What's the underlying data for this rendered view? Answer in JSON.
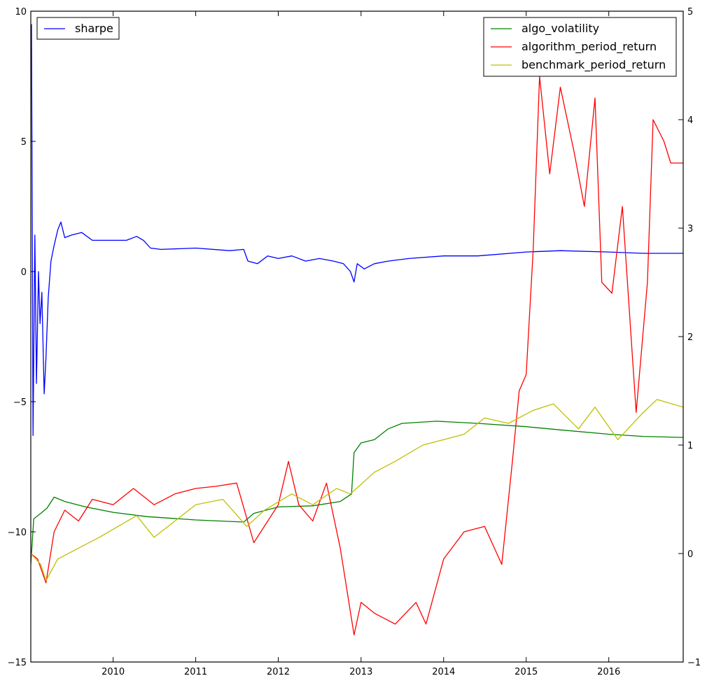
{
  "chart_data": {
    "type": "line",
    "title": "",
    "xlabel": "",
    "ylabel": "",
    "x_axis": {
      "type": "date",
      "range": [
        "2009-01-02",
        "2016-11-25"
      ],
      "ticks": [
        "2010",
        "2011",
        "2012",
        "2013",
        "2014",
        "2015",
        "2016"
      ]
    },
    "y_left": {
      "range": [
        -15,
        10
      ],
      "ticks": [
        "10",
        "5",
        "0",
        "−5",
        "−10",
        "−15"
      ]
    },
    "y_right": {
      "range": [
        -1,
        5
      ],
      "ticks": [
        "5",
        "4",
        "3",
        "2",
        "1",
        "0",
        "−1"
      ]
    },
    "grid": false,
    "legends": [
      {
        "placement": "top-left",
        "entries": [
          "sharpe"
        ]
      },
      {
        "placement": "top-right",
        "entries": [
          "algo_volatility",
          "algorithm_period_return",
          "benchmark_period_return"
        ]
      }
    ],
    "series": [
      {
        "name": "sharpe",
        "axis": "left",
        "color": "#0000ff",
        "points": [
          [
            "2009-01-05",
            9.5
          ],
          [
            "2009-01-12",
            -6.3
          ],
          [
            "2009-01-20",
            1.4
          ],
          [
            "2009-01-27",
            -4.3
          ],
          [
            "2009-02-05",
            0.0
          ],
          [
            "2009-02-12",
            -2.0
          ],
          [
            "2009-02-20",
            -0.8
          ],
          [
            "2009-03-02",
            -4.7
          ],
          [
            "2009-03-10",
            -3.3
          ],
          [
            "2009-03-20",
            -1.0
          ],
          [
            "2009-04-01",
            0.4
          ],
          [
            "2009-04-15",
            1.0
          ],
          [
            "2009-05-01",
            1.6
          ],
          [
            "2009-05-15",
            1.9
          ],
          [
            "2009-06-01",
            1.3
          ],
          [
            "2009-07-01",
            1.4
          ],
          [
            "2009-08-15",
            1.5
          ],
          [
            "2009-10-01",
            1.2
          ],
          [
            "2010-01-01",
            1.2
          ],
          [
            "2010-03-01",
            1.2
          ],
          [
            "2010-04-15",
            1.35
          ],
          [
            "2010-05-15",
            1.2
          ],
          [
            "2010-06-15",
            0.9
          ],
          [
            "2010-08-01",
            0.85
          ],
          [
            "2011-01-01",
            0.9
          ],
          [
            "2011-06-01",
            0.8
          ],
          [
            "2011-08-01",
            0.85
          ],
          [
            "2011-08-20",
            0.4
          ],
          [
            "2011-10-01",
            0.3
          ],
          [
            "2011-11-15",
            0.6
          ],
          [
            "2012-01-01",
            0.5
          ],
          [
            "2012-03-01",
            0.6
          ],
          [
            "2012-05-01",
            0.4
          ],
          [
            "2012-07-01",
            0.5
          ],
          [
            "2012-09-01",
            0.4
          ],
          [
            "2012-10-15",
            0.3
          ],
          [
            "2012-11-15",
            0.0
          ],
          [
            "2012-12-01",
            -0.4
          ],
          [
            "2012-12-15",
            0.3
          ],
          [
            "2013-01-15",
            0.1
          ],
          [
            "2013-03-01",
            0.3
          ],
          [
            "2013-05-01",
            0.4
          ],
          [
            "2013-08-01",
            0.5
          ],
          [
            "2014-01-01",
            0.6
          ],
          [
            "2014-06-01",
            0.6
          ],
          [
            "2015-01-01",
            0.75
          ],
          [
            "2015-06-01",
            0.8
          ],
          [
            "2016-01-01",
            0.75
          ],
          [
            "2016-06-01",
            0.7
          ],
          [
            "2016-11-25",
            0.7
          ]
        ]
      },
      {
        "name": "algo_volatility",
        "axis": "right",
        "color": "#008000",
        "points": [
          [
            "2009-01-02",
            -0.1
          ],
          [
            "2009-01-15",
            0.32
          ],
          [
            "2009-02-15",
            0.37
          ],
          [
            "2009-03-15",
            0.42
          ],
          [
            "2009-04-15",
            0.52
          ],
          [
            "2009-06-01",
            0.48
          ],
          [
            "2009-09-01",
            0.43
          ],
          [
            "2010-01-01",
            0.38
          ],
          [
            "2010-06-01",
            0.34
          ],
          [
            "2011-01-01",
            0.31
          ],
          [
            "2011-08-01",
            0.29
          ],
          [
            "2011-09-15",
            0.37
          ],
          [
            "2012-01-01",
            0.43
          ],
          [
            "2012-06-01",
            0.44
          ],
          [
            "2012-10-01",
            0.48
          ],
          [
            "2012-11-20",
            0.55
          ],
          [
            "2012-12-01",
            0.93
          ],
          [
            "2013-01-01",
            1.02
          ],
          [
            "2013-03-01",
            1.05
          ],
          [
            "2013-05-01",
            1.15
          ],
          [
            "2013-07-01",
            1.2
          ],
          [
            "2013-12-01",
            1.22
          ],
          [
            "2014-06-01",
            1.2
          ],
          [
            "2015-01-01",
            1.17
          ],
          [
            "2015-06-01",
            1.14
          ],
          [
            "2016-01-01",
            1.1
          ],
          [
            "2016-06-01",
            1.08
          ],
          [
            "2016-11-25",
            1.07
          ]
        ]
      },
      {
        "name": "algorithm_period_return",
        "axis": "right",
        "color": "#ff0000",
        "points": [
          [
            "2009-01-02",
            0.0
          ],
          [
            "2009-02-01",
            -0.05
          ],
          [
            "2009-03-10",
            -0.27
          ],
          [
            "2009-04-15",
            0.2
          ],
          [
            "2009-06-01",
            0.4
          ],
          [
            "2009-08-01",
            0.3
          ],
          [
            "2009-10-01",
            0.5
          ],
          [
            "2010-01-01",
            0.45
          ],
          [
            "2010-04-01",
            0.6
          ],
          [
            "2010-07-01",
            0.45
          ],
          [
            "2010-10-01",
            0.55
          ],
          [
            "2011-01-01",
            0.6
          ],
          [
            "2011-04-01",
            0.62
          ],
          [
            "2011-07-01",
            0.65
          ],
          [
            "2011-09-15",
            0.1
          ],
          [
            "2012-01-01",
            0.45
          ],
          [
            "2012-02-15",
            0.85
          ],
          [
            "2012-04-01",
            0.45
          ],
          [
            "2012-06-01",
            0.3
          ],
          [
            "2012-08-01",
            0.65
          ],
          [
            "2012-10-01",
            0.05
          ],
          [
            "2012-12-01",
            -0.75
          ],
          [
            "2013-01-01",
            -0.45
          ],
          [
            "2013-03-01",
            -0.55
          ],
          [
            "2013-06-01",
            -0.65
          ],
          [
            "2013-09-01",
            -0.45
          ],
          [
            "2013-10-15",
            -0.65
          ],
          [
            "2014-01-01",
            -0.05
          ],
          [
            "2014-04-01",
            0.2
          ],
          [
            "2014-07-01",
            0.25
          ],
          [
            "2014-09-15",
            -0.1
          ],
          [
            "2014-11-01",
            0.85
          ],
          [
            "2014-12-01",
            1.5
          ],
          [
            "2015-01-01",
            1.65
          ],
          [
            "2015-02-01",
            2.8
          ],
          [
            "2015-03-01",
            4.4
          ],
          [
            "2015-04-15",
            3.5
          ],
          [
            "2015-06-01",
            4.3
          ],
          [
            "2015-08-01",
            3.7
          ],
          [
            "2015-09-15",
            3.2
          ],
          [
            "2015-11-01",
            4.2
          ],
          [
            "2015-12-01",
            2.5
          ],
          [
            "2016-01-15",
            2.4
          ],
          [
            "2016-03-01",
            3.2
          ],
          [
            "2016-05-01",
            1.3
          ],
          [
            "2016-06-20",
            2.5
          ],
          [
            "2016-07-15",
            4.0
          ],
          [
            "2016-09-01",
            3.8
          ],
          [
            "2016-10-01",
            3.6
          ],
          [
            "2016-11-25",
            3.6
          ]
        ]
      },
      {
        "name": "benchmark_period_return",
        "axis": "right",
        "color": "#bfbf00",
        "points": [
          [
            "2009-01-02",
            0.0
          ],
          [
            "2009-02-15",
            -0.1
          ],
          [
            "2009-03-10",
            -0.25
          ],
          [
            "2009-05-01",
            -0.05
          ],
          [
            "2009-08-01",
            0.05
          ],
          [
            "2009-11-01",
            0.15
          ],
          [
            "2010-04-15",
            0.35
          ],
          [
            "2010-07-01",
            0.15
          ],
          [
            "2011-01-01",
            0.45
          ],
          [
            "2011-05-01",
            0.5
          ],
          [
            "2011-08-15",
            0.25
          ],
          [
            "2011-11-01",
            0.4
          ],
          [
            "2012-03-01",
            0.55
          ],
          [
            "2012-06-01",
            0.45
          ],
          [
            "2012-09-15",
            0.6
          ],
          [
            "2012-11-15",
            0.55
          ],
          [
            "2013-03-01",
            0.75
          ],
          [
            "2013-06-01",
            0.85
          ],
          [
            "2013-10-01",
            1.0
          ],
          [
            "2014-01-01",
            1.05
          ],
          [
            "2014-04-01",
            1.1
          ],
          [
            "2014-07-01",
            1.25
          ],
          [
            "2014-10-15",
            1.2
          ],
          [
            "2015-02-01",
            1.32
          ],
          [
            "2015-05-01",
            1.38
          ],
          [
            "2015-08-20",
            1.15
          ],
          [
            "2015-11-01",
            1.35
          ],
          [
            "2016-02-10",
            1.05
          ],
          [
            "2016-06-01",
            1.3
          ],
          [
            "2016-08-01",
            1.42
          ],
          [
            "2016-11-25",
            1.35
          ]
        ]
      }
    ]
  }
}
